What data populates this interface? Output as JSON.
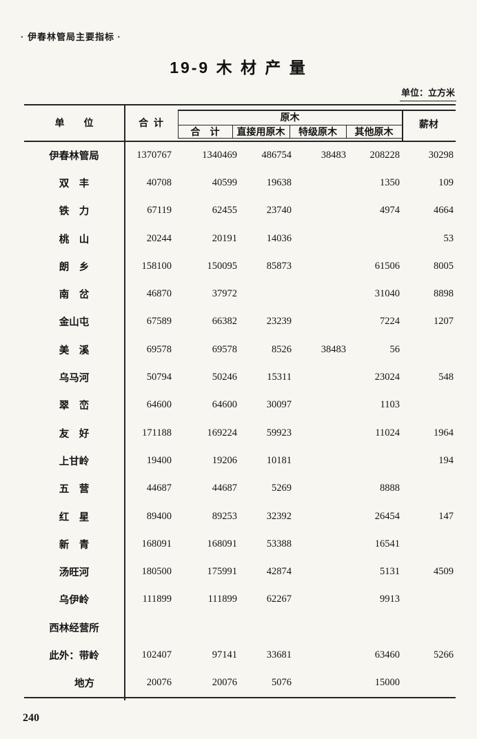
{
  "page": {
    "header_note": "·  伊春林管局主要指标  ·",
    "title": "19-9  木 材 产 量",
    "unit_note": "单位：立方米",
    "page_number": "240"
  },
  "table": {
    "headers": {
      "unit": "单　　位",
      "total": "合  计",
      "logs_group": "原木",
      "logs_total": "合　计",
      "logs_direct": "直接用原木",
      "logs_special": "特级原木",
      "logs_other": "其他原木",
      "firewood": "薪材"
    },
    "rows": [
      {
        "name": "伊春林管局",
        "total": "1370767",
        "logs_total": "1340469",
        "direct": "486754",
        "special": "38483",
        "other": "208228",
        "firewood": "30298"
      },
      {
        "name": "双　丰",
        "total": "40708",
        "logs_total": "40599",
        "direct": "19638",
        "special": "",
        "other": "1350",
        "firewood": "109"
      },
      {
        "name": "铁　力",
        "total": "67119",
        "logs_total": "62455",
        "direct": "23740",
        "special": "",
        "other": "4974",
        "firewood": "4664"
      },
      {
        "name": "桃　山",
        "total": "20244",
        "logs_total": "20191",
        "direct": "14036",
        "special": "",
        "other": "",
        "firewood": "53"
      },
      {
        "name": "朗　乡",
        "total": "158100",
        "logs_total": "150095",
        "direct": "85873",
        "special": "",
        "other": "61506",
        "firewood": "8005"
      },
      {
        "name": "南　岔",
        "total": "46870",
        "logs_total": "37972",
        "direct": "",
        "special": "",
        "other": "31040",
        "firewood": "8898"
      },
      {
        "name": "金山屯",
        "total": "67589",
        "logs_total": "66382",
        "direct": "23239",
        "special": "",
        "other": "7224",
        "firewood": "1207"
      },
      {
        "name": "美　溪",
        "total": "69578",
        "logs_total": "69578",
        "direct": "8526",
        "special": "38483",
        "other": "56",
        "firewood": ""
      },
      {
        "name": "乌马河",
        "total": "50794",
        "logs_total": "50246",
        "direct": "15311",
        "special": "",
        "other": "23024",
        "firewood": "548"
      },
      {
        "name": "翠　峦",
        "total": "64600",
        "logs_total": "64600",
        "direct": "30097",
        "special": "",
        "other": "1103",
        "firewood": ""
      },
      {
        "name": "友　好",
        "total": "171188",
        "logs_total": "169224",
        "direct": "59923",
        "special": "",
        "other": "11024",
        "firewood": "1964"
      },
      {
        "name": "上甘岭",
        "total": "19400",
        "logs_total": "19206",
        "direct": "10181",
        "special": "",
        "other": "",
        "firewood": "194"
      },
      {
        "name": "五　营",
        "total": "44687",
        "logs_total": "44687",
        "direct": "5269",
        "special": "",
        "other": "8888",
        "firewood": ""
      },
      {
        "name": "红　星",
        "total": "89400",
        "logs_total": "89253",
        "direct": "32392",
        "special": "",
        "other": "26454",
        "firewood": "147"
      },
      {
        "name": "新　青",
        "total": "168091",
        "logs_total": "168091",
        "direct": "53388",
        "special": "",
        "other": "16541",
        "firewood": ""
      },
      {
        "name": "汤旺河",
        "total": "180500",
        "logs_total": "175991",
        "direct": "42874",
        "special": "",
        "other": "5131",
        "firewood": "4509"
      },
      {
        "name": "乌伊岭",
        "total": "111899",
        "logs_total": "111899",
        "direct": "62267",
        "special": "",
        "other": "9913",
        "firewood": ""
      },
      {
        "name": "西林经营所",
        "total": "",
        "logs_total": "",
        "direct": "",
        "special": "",
        "other": "",
        "firewood": ""
      },
      {
        "name": "此外：带岭",
        "total": "102407",
        "logs_total": "97141",
        "direct": "33681",
        "special": "",
        "other": "63460",
        "firewood": "5266"
      },
      {
        "name": "地方",
        "indent": true,
        "total": "20076",
        "logs_total": "20076",
        "direct": "5076",
        "special": "",
        "other": "15000",
        "firewood": ""
      }
    ]
  }
}
